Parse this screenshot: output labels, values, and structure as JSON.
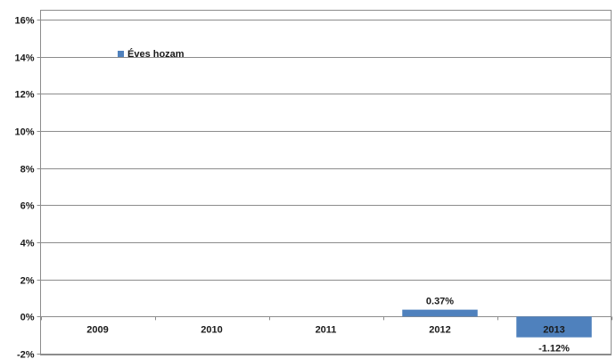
{
  "chart_data": {
    "type": "bar",
    "categories": [
      "2009",
      "2010",
      "2011",
      "2012",
      "2013"
    ],
    "series": [
      {
        "name": "Éves hozam",
        "values": [
          null,
          null,
          null,
          0.37,
          -1.12
        ],
        "data_labels": [
          "",
          "",
          "",
          "0.37%",
          "-1.12%"
        ],
        "color": "#4f81bd"
      }
    ],
    "ylim": [
      -2,
      16
    ],
    "yticks": [
      16,
      14,
      12,
      10,
      8,
      6,
      4,
      2,
      0,
      -2
    ],
    "ytick_labels": [
      "16%",
      "14%",
      "12%",
      "10%",
      "8%",
      "6%",
      "4%",
      "2%",
      "0%",
      "-2%"
    ],
    "grid": true,
    "legend": "top-left",
    "colors": {
      "bar": "#4f81bd",
      "grid": "#8c8c8c",
      "axis": "#8c8c8c",
      "text": "#1a1a1a"
    }
  }
}
